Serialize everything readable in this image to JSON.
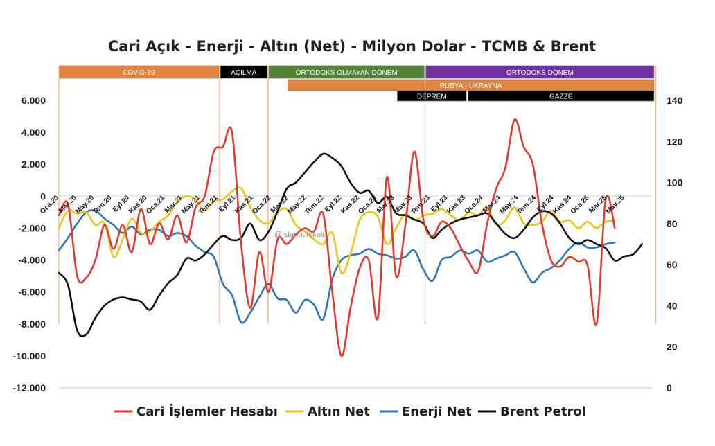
{
  "chart_data": {
    "type": "line",
    "title": "Cari Açık - Enerji - Altın (Net) - Milyon Dolar - TCMB & Brent",
    "watermark": "@istanbulekolu",
    "xlabel": "",
    "ylabel": "",
    "y_left": {
      "min": -12000,
      "max": 6000,
      "step": 2000,
      "tick_labels": [
        "6.000",
        "4.000",
        "2.000",
        "0",
        "-2.000",
        "-4.000",
        "-6.000",
        "-8.000",
        "-10.000",
        "-12.000"
      ]
    },
    "y_right": {
      "min": 0,
      "max": 140,
      "step": 20,
      "tick_labels": [
        "140",
        "120",
        "100",
        "80",
        "60",
        "40",
        "20",
        "0"
      ]
    },
    "x_tick_labels": [
      "Oca.20",
      "Mar.20",
      "May.20",
      "Tem.20",
      "Eyl.20",
      "Kas.20",
      "Oca.21",
      "Mar.21",
      "May.21",
      "Tem.21",
      "Eyl.21",
      "Kas.21",
      "Oca.22",
      "Mar.22",
      "May.22",
      "Tem.22",
      "Eyl.22",
      "Kas.22",
      "Oca.23",
      "Mar.23",
      "May.23",
      "Tem.23",
      "Eyl.23",
      "Kas.23",
      "Oca.24",
      "Mar.24",
      "May.24",
      "Tem.24",
      "Eyl.24",
      "Kas.24",
      "Oca.25",
      "Mar.25",
      "May.25"
    ],
    "grid": false,
    "legend_placement": "bottom",
    "periods": [
      {
        "label": "COVID-19",
        "start": 0,
        "end": 17.8,
        "row": 0,
        "color": "#e0833f"
      },
      {
        "label": "AÇILMA",
        "start": 18,
        "end": 23.2,
        "row": 0,
        "color": "#000000"
      },
      {
        "label": "ORTODOKS OLMAYAN DÖNEM",
        "start": 23.4,
        "end": 40.7,
        "row": 0,
        "color": "#538135"
      },
      {
        "label": "ORTODOKS DÖNEM",
        "start": 40.9,
        "end": 66.3,
        "row": 0,
        "color": "#7030a0"
      },
      {
        "label": "RUSYA - UKRAYNA",
        "start": 25.5,
        "end": 66.3,
        "row": 1,
        "color": "#e0833f"
      },
      {
        "label": "DEPREM",
        "start": 37.7,
        "end": 45.4,
        "row": 2,
        "color": "#000000"
      },
      {
        "label": "GAZZE",
        "start": 45.6,
        "end": 66.3,
        "row": 2,
        "color": "#000000"
      }
    ],
    "period_lines": [
      0,
      17.9,
      23.3,
      40.8,
      66.5
    ],
    "series": [
      {
        "name": "Cari İşlemler Hesabı",
        "axis": "left",
        "color": "#e03a2c",
        "values": [
          -1200,
          -500,
          -5000,
          -5100,
          -4000,
          -1800,
          -3300,
          -1800,
          -3500,
          -800,
          -3000,
          -1700,
          -2700,
          -1200,
          -2900,
          -700,
          0,
          2800,
          3100,
          4000,
          -3000,
          -7000,
          -3500,
          -6000,
          -2700,
          -3000,
          -2400,
          -2000,
          -2200,
          -1100,
          -6000,
          -10000,
          -7000,
          -4500,
          -4000,
          -7600,
          1200,
          -5000,
          -1900,
          2800,
          -1500,
          -2500,
          -1600,
          -2000,
          -3100,
          -4100,
          -4700,
          -1700,
          500,
          1800,
          4800,
          3100,
          2000,
          -1700,
          -4000,
          -4400,
          -3800,
          -4100,
          -4300,
          -8000,
          -200,
          -2000
        ]
      },
      {
        "name": "Altın Net",
        "axis": "left",
        "color": "#f0c21d",
        "values": [
          -2000,
          -900,
          -1100,
          -1000,
          -1800,
          -1700,
          -3800,
          -2700,
          -1400,
          -2300,
          -2200,
          -1600,
          -1200,
          -300,
          0,
          -200,
          -900,
          -300,
          -200,
          300,
          500,
          -700,
          -1500,
          -1700,
          -1000,
          -800,
          -1800,
          -2200,
          -2700,
          -3000,
          -2300,
          -4800,
          -3600,
          -1500,
          -1000,
          -1300,
          -3000,
          -2000,
          -1100,
          -1500,
          -1200,
          -1100,
          -800,
          -1200,
          -1500,
          -1000,
          -1200,
          -700,
          -1800,
          -1500,
          -700,
          -1700,
          -1800,
          -1600,
          -900,
          -1600,
          -1500,
          -2000,
          -1600,
          -2000,
          -1600,
          -1500
        ]
      },
      {
        "name": "Enerji Net",
        "axis": "left",
        "color": "#2e75b6",
        "values": [
          -3400,
          -2600,
          -1700,
          -1000,
          -900,
          -1400,
          -1800,
          -2300,
          -1900,
          -2400,
          -2100,
          -2100,
          -2500,
          -2300,
          -2500,
          -3100,
          -3500,
          -3800,
          -5500,
          -6200,
          -7900,
          -7300,
          -6300,
          -5500,
          -6400,
          -6500,
          -7300,
          -6500,
          -6800,
          -7700,
          -5200,
          -4000,
          -3700,
          -3600,
          -3300,
          -3600,
          -3700,
          -3900,
          -3800,
          -3400,
          -4600,
          -5300,
          -4000,
          -3800,
          -3400,
          -3600,
          -3400,
          -4100,
          -3900,
          -3700,
          -3500,
          -4500,
          -5400,
          -4800,
          -4500,
          -4000,
          -3300,
          -2900,
          -3200,
          -3200,
          -3000,
          -2900
        ]
      },
      {
        "name": "Brent Petrol",
        "axis": "right",
        "color": "#0d0d0d",
        "values": [
          56,
          50,
          28,
          26,
          34,
          40,
          43,
          44,
          43,
          42,
          38,
          45,
          51,
          55,
          63,
          62,
          65,
          70,
          74,
          72,
          73,
          80,
          72,
          76,
          86,
          97,
          100,
          105,
          110,
          114,
          112,
          108,
          100,
          95,
          96,
          90,
          93,
          85,
          84,
          82,
          80,
          73,
          77,
          80,
          82,
          83,
          84,
          85,
          80,
          75,
          73,
          77,
          83,
          86,
          85,
          80,
          73,
          70,
          72,
          70,
          68,
          62,
          64,
          65,
          70
        ]
      }
    ]
  }
}
